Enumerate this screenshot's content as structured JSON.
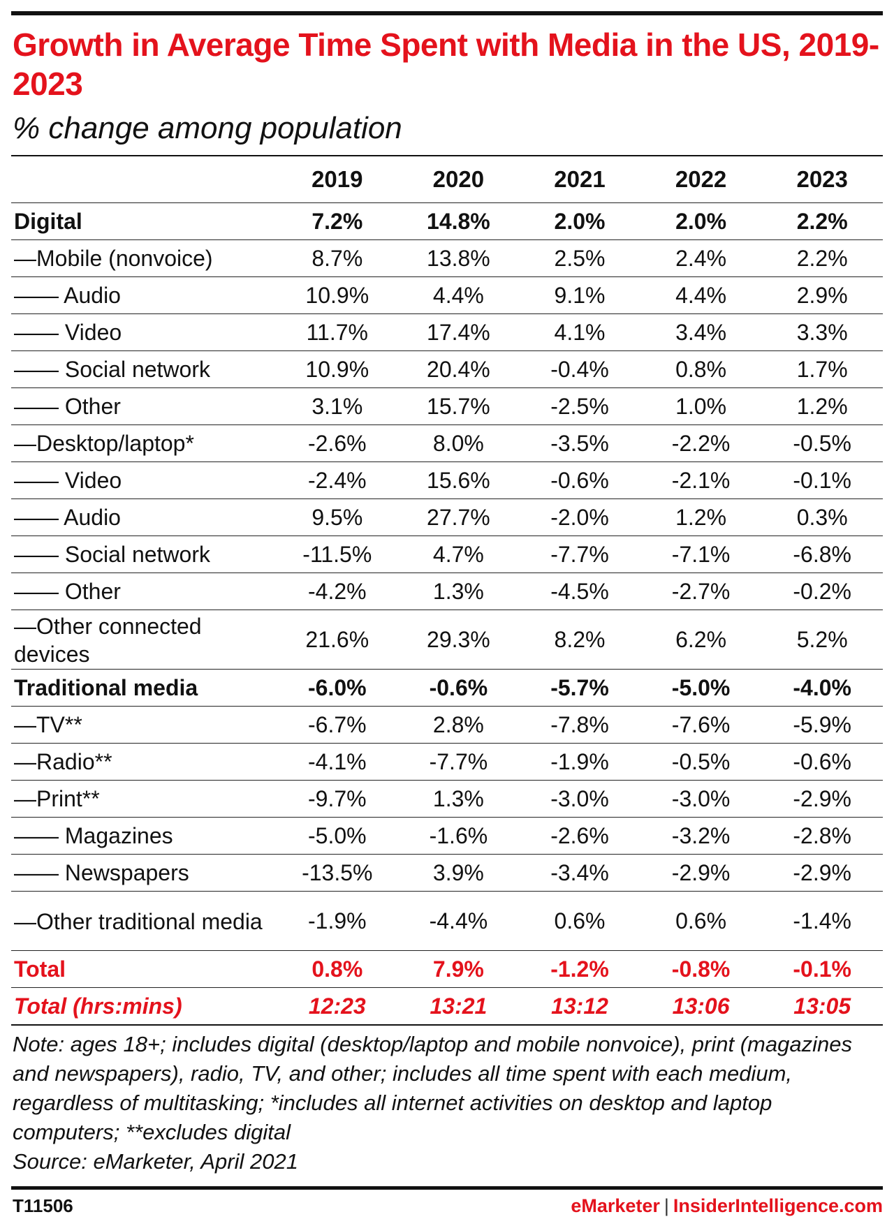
{
  "chart_data": {
    "type": "table",
    "title": "Growth in Average Time Spent with Media in the US, 2019-2023",
    "subtitle": "% change among population",
    "columns": [
      "2019",
      "2020",
      "2021",
      "2022",
      "2023"
    ],
    "rows": [
      {
        "label": "Digital",
        "style": "bold",
        "values": [
          "7.2%",
          "14.8%",
          "2.0%",
          "2.0%",
          "2.2%"
        ]
      },
      {
        "label": "—Mobile (nonvoice)",
        "style": "normal",
        "values": [
          "8.7%",
          "13.8%",
          "2.5%",
          "2.4%",
          "2.2%"
        ]
      },
      {
        "label": "—— Audio",
        "style": "normal",
        "values": [
          "10.9%",
          "4.4%",
          "9.1%",
          "4.4%",
          "2.9%"
        ]
      },
      {
        "label": "—— Video",
        "style": "normal",
        "values": [
          "11.7%",
          "17.4%",
          "4.1%",
          "3.4%",
          "3.3%"
        ]
      },
      {
        "label": "—— Social network",
        "style": "normal",
        "values": [
          "10.9%",
          "20.4%",
          "-0.4%",
          "0.8%",
          "1.7%"
        ]
      },
      {
        "label": "—— Other",
        "style": "normal",
        "values": [
          "3.1%",
          "15.7%",
          "-2.5%",
          "1.0%",
          "1.2%"
        ]
      },
      {
        "label": "—Desktop/laptop*",
        "style": "normal",
        "values": [
          "-2.6%",
          "8.0%",
          "-3.5%",
          "-2.2%",
          "-0.5%"
        ]
      },
      {
        "label": "—— Video",
        "style": "normal",
        "values": [
          "-2.4%",
          "15.6%",
          "-0.6%",
          "-2.1%",
          "-0.1%"
        ]
      },
      {
        "label": "—— Audio",
        "style": "normal",
        "values": [
          "9.5%",
          "27.7%",
          "-2.0%",
          "1.2%",
          "0.3%"
        ]
      },
      {
        "label": "—— Social network",
        "style": "normal",
        "values": [
          "-11.5%",
          "4.7%",
          "-7.7%",
          "-7.1%",
          "-6.8%"
        ]
      },
      {
        "label": "—— Other",
        "style": "normal",
        "values": [
          "-4.2%",
          "1.3%",
          "-4.5%",
          "-2.7%",
          "-0.2%"
        ]
      },
      {
        "label": "—Other connected devices",
        "style": "tall",
        "values": [
          "21.6%",
          "29.3%",
          "8.2%",
          "6.2%",
          "5.2%"
        ]
      },
      {
        "label": "Traditional media",
        "style": "bold",
        "values": [
          "-6.0%",
          "-0.6%",
          "-5.7%",
          "-5.0%",
          "-4.0%"
        ]
      },
      {
        "label": "—TV**",
        "style": "normal",
        "values": [
          "-6.7%",
          "2.8%",
          "-7.8%",
          "-7.6%",
          "-5.9%"
        ]
      },
      {
        "label": "—Radio**",
        "style": "normal",
        "values": [
          "-4.1%",
          "-7.7%",
          "-1.9%",
          "-0.5%",
          "-0.6%"
        ]
      },
      {
        "label": "—Print**",
        "style": "normal",
        "values": [
          "-9.7%",
          "1.3%",
          "-3.0%",
          "-3.0%",
          "-2.9%"
        ]
      },
      {
        "label": "—— Magazines",
        "style": "normal",
        "values": [
          "-5.0%",
          "-1.6%",
          "-2.6%",
          "-3.2%",
          "-2.8%"
        ]
      },
      {
        "label": "—— Newspapers",
        "style": "normal",
        "values": [
          "-13.5%",
          "3.9%",
          "-3.4%",
          "-2.9%",
          "-2.9%"
        ]
      },
      {
        "label": "—Other traditional media",
        "style": "tall",
        "values": [
          "-1.9%",
          "-4.4%",
          "0.6%",
          "0.6%",
          "-1.4%"
        ]
      },
      {
        "label": "Total",
        "style": "red",
        "values": [
          "0.8%",
          "7.9%",
          "-1.2%",
          "-0.8%",
          "-0.1%"
        ]
      },
      {
        "label": "Total (hrs:mins)",
        "style": "red-italic",
        "values": [
          "12:23",
          "13:21",
          "13:12",
          "13:06",
          "13:05"
        ]
      }
    ]
  },
  "note": "Note: ages 18+; includes digital (desktop/laptop and mobile nonvoice), print (magazines and newspapers), radio, TV, and other; includes all time spent with each medium, regardless of multitasking; *includes all internet activities on desktop and laptop computers; **excludes digital",
  "source": "Source: eMarketer, April 2021",
  "footer": {
    "chart_id": "T11506",
    "brand": "eMarketer",
    "separator": "|",
    "site": "InsiderIntelligence.com"
  },
  "colors": {
    "accent": "#e4121c",
    "text": "#111111"
  }
}
